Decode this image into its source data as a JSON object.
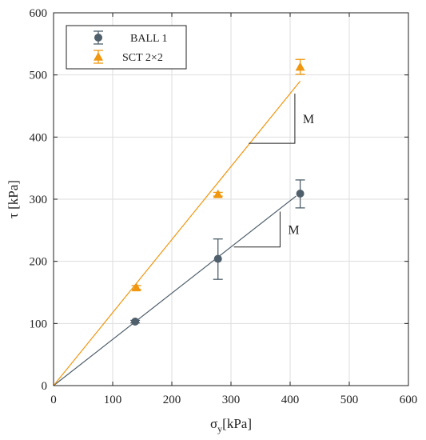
{
  "chart_data": {
    "type": "scatter",
    "xlabel_main": "σ",
    "xlabel_sub": "y",
    "xlabel_unit": "[kPa]",
    "ylabel": "τ [kPa]",
    "xlim": [
      0,
      600
    ],
    "ylim": [
      0,
      600
    ],
    "xticks": [
      0,
      100,
      200,
      300,
      400,
      500,
      600
    ],
    "yticks": [
      0,
      100,
      200,
      300,
      400,
      500,
      600
    ],
    "grid": true,
    "legend_position": "top-left",
    "series": [
      {
        "name": "BALL 1",
        "color": "#4f5f6b",
        "marker": "circle",
        "x": [
          138,
          278,
          417
        ],
        "y": [
          103,
          204,
          309
        ],
        "err_low": [
          2,
          33,
          23
        ],
        "err_high": [
          2,
          32,
          22
        ],
        "fit_line": {
          "x": [
            0,
            410
          ],
          "y": [
            0,
            305
          ]
        }
      },
      {
        "name": "SCT 2×2",
        "color": "#f0960f",
        "marker": "triangle",
        "x": [
          140,
          278,
          417
        ],
        "y": [
          158,
          308,
          513
        ],
        "err_low": [
          3,
          3,
          12
        ],
        "err_high": [
          3,
          3,
          12
        ],
        "fit_line": {
          "x": [
            0,
            417
          ],
          "y": [
            0,
            490
          ]
        }
      }
    ],
    "annotations": [
      {
        "text": "M",
        "triangle": {
          "x1": 330,
          "y1": 390,
          "x2": 408,
          "y2": 470
        }
      },
      {
        "text": "M",
        "triangle": {
          "x1": 305,
          "y1": 223,
          "x2": 383,
          "y2": 280
        }
      }
    ]
  }
}
